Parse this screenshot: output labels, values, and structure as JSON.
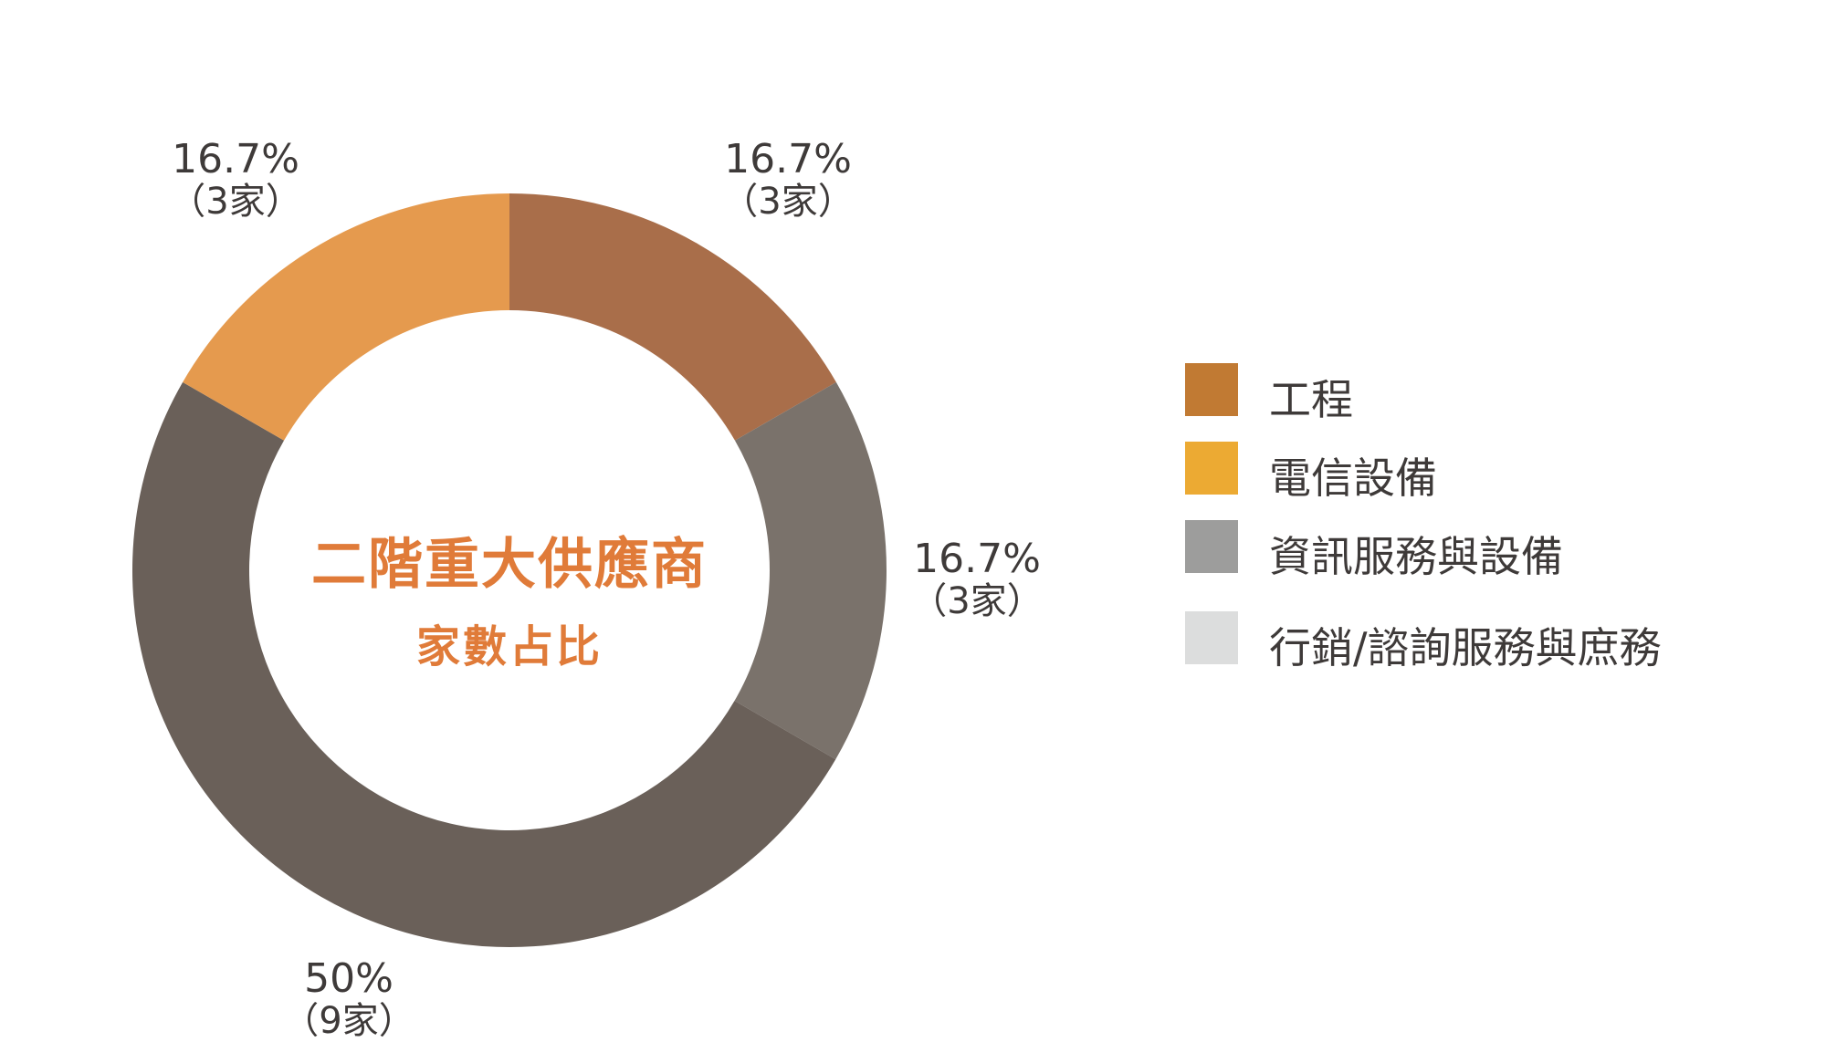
{
  "chart_data": {
    "type": "donut",
    "title": "二階重大供應商",
    "subtitle": "家數占比",
    "legend": [
      {
        "name": "工程",
        "color": "#c17a33"
      },
      {
        "name": "電信設備",
        "color": "#ecaa33"
      },
      {
        "name": "資訊服務與設備",
        "color": "#9d9d9c"
      },
      {
        "name": "行銷/諮詢服務與庶務",
        "color": "#dcdddd"
      }
    ],
    "slices": [
      {
        "percent": 16.7,
        "value": 3,
        "percent_label": "16.7%",
        "count_label": "（3家）",
        "color": "#a96e4a"
      },
      {
        "percent": 16.7,
        "value": 3,
        "percent_label": "16.7%",
        "count_label": "（3家）",
        "color": "#7a726b"
      },
      {
        "percent": 50,
        "value": 9,
        "percent_label": "50%",
        "count_label": "（9家）",
        "color": "#6a6059"
      },
      {
        "percent": 16.7,
        "value": 3,
        "percent_label": "16.7%",
        "count_label": "（3家）",
        "color": "#e59a4e"
      }
    ],
    "legend_position": "right"
  }
}
